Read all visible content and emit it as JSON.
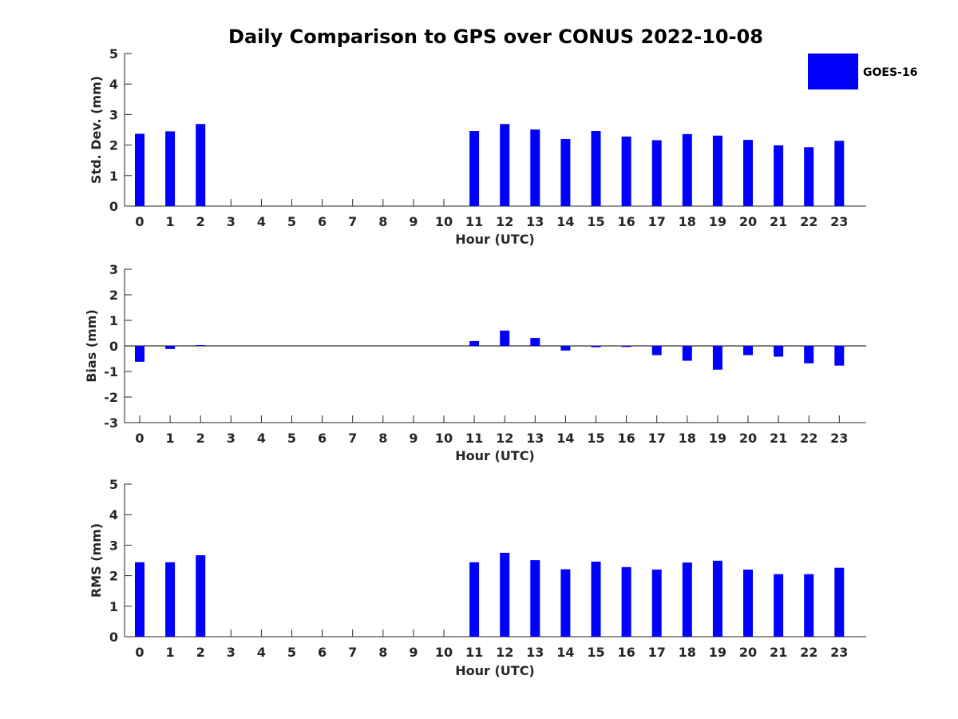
{
  "title": "Daily Comparison to GPS over CONUS 2022-10-08",
  "legend": {
    "label": "GOES-16",
    "color": "#0000ff"
  },
  "chart_data": [
    {
      "type": "bar",
      "ylabel": "Std. Dev. (mm)",
      "xlabel": "Hour (UTC)",
      "ylim": [
        0,
        5
      ],
      "yticks": [
        0,
        1,
        2,
        3,
        4,
        5
      ],
      "categories": [
        "0",
        "1",
        "2",
        "3",
        "4",
        "5",
        "6",
        "7",
        "8",
        "9",
        "10",
        "11",
        "12",
        "13",
        "14",
        "15",
        "16",
        "17",
        "18",
        "19",
        "20",
        "21",
        "22",
        "23"
      ],
      "series": [
        {
          "name": "GOES-16",
          "values": [
            2.37,
            2.45,
            2.69,
            null,
            null,
            null,
            null,
            null,
            null,
            null,
            null,
            2.46,
            2.69,
            2.51,
            2.2,
            2.46,
            2.28,
            2.16,
            2.36,
            2.31,
            2.17,
            1.99,
            1.93,
            2.14
          ]
        }
      ]
    },
    {
      "type": "bar",
      "ylabel": "Bias (mm)",
      "xlabel": "Hour (UTC)",
      "ylim": [
        -3,
        3
      ],
      "yticks": [
        -3,
        -2,
        -1,
        0,
        1,
        2,
        3
      ],
      "categories": [
        "0",
        "1",
        "2",
        "3",
        "4",
        "5",
        "6",
        "7",
        "8",
        "9",
        "10",
        "11",
        "12",
        "13",
        "14",
        "15",
        "16",
        "17",
        "18",
        "19",
        "20",
        "21",
        "22",
        "23"
      ],
      "series": [
        {
          "name": "GOES-16",
          "values": [
            -0.62,
            -0.12,
            0.03,
            null,
            null,
            null,
            null,
            null,
            null,
            null,
            null,
            0.19,
            0.6,
            0.31,
            -0.18,
            -0.05,
            -0.04,
            -0.36,
            -0.58,
            -0.93,
            -0.36,
            -0.42,
            -0.68,
            -0.77
          ]
        }
      ]
    },
    {
      "type": "bar",
      "ylabel": "RMS (mm)",
      "xlabel": "Hour (UTC)",
      "ylim": [
        0,
        5
      ],
      "yticks": [
        0,
        1,
        2,
        3,
        4,
        5
      ],
      "categories": [
        "0",
        "1",
        "2",
        "3",
        "4",
        "5",
        "6",
        "7",
        "8",
        "9",
        "10",
        "11",
        "12",
        "13",
        "14",
        "15",
        "16",
        "17",
        "18",
        "19",
        "20",
        "21",
        "22",
        "23"
      ],
      "series": [
        {
          "name": "GOES-16",
          "values": [
            2.44,
            2.44,
            2.67,
            null,
            null,
            null,
            null,
            null,
            null,
            null,
            null,
            2.44,
            2.75,
            2.51,
            2.21,
            2.46,
            2.28,
            2.2,
            2.43,
            2.49,
            2.2,
            2.05,
            2.05,
            2.26
          ]
        }
      ]
    }
  ]
}
